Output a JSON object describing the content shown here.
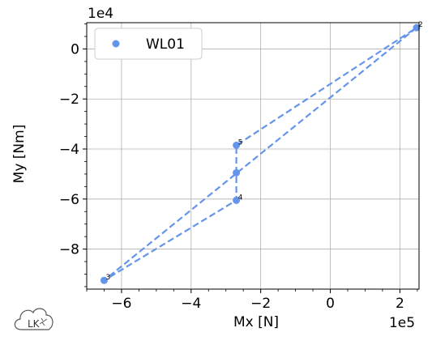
{
  "chart_data": {
    "type": "scatter",
    "title": "",
    "xlabel": "Mx [N]",
    "ylabel": "My [Nm]",
    "x_offset_label": "1e5",
    "y_offset_label": "1e4",
    "x_scale": 100000,
    "y_scale": 10000,
    "xlim": [
      -7.0,
      2.55
    ],
    "ylim": [
      -9.6,
      1.05
    ],
    "x_ticks": [
      -6,
      -4,
      -2,
      0,
      2
    ],
    "y_ticks": [
      0,
      -2,
      -4,
      -6,
      -8
    ],
    "x_tick_labels": [
      "−6",
      "−4",
      "−2",
      "0",
      "2"
    ],
    "y_tick_labels": [
      "0",
      "−2",
      "−4",
      "−6",
      "−8"
    ],
    "grid": true,
    "legend": {
      "placement": "top-left",
      "entries": [
        "WL01"
      ]
    },
    "series": [
      {
        "name": "WL01",
        "color": "#6495ED",
        "points": [
          {
            "x": -2.7,
            "y": -4.95,
            "label": ""
          },
          {
            "x": 2.48,
            "y": 0.85,
            "label": "2"
          },
          {
            "x": -6.5,
            "y": -9.25,
            "label": "3"
          },
          {
            "x": -2.7,
            "y": -6.05,
            "label": "4"
          },
          {
            "x": -2.7,
            "y": -3.85,
            "label": "5"
          }
        ],
        "path_order": [
          1,
          2,
          3,
          4,
          1
        ]
      }
    ]
  },
  "logo": {
    "text": "LK"
  }
}
